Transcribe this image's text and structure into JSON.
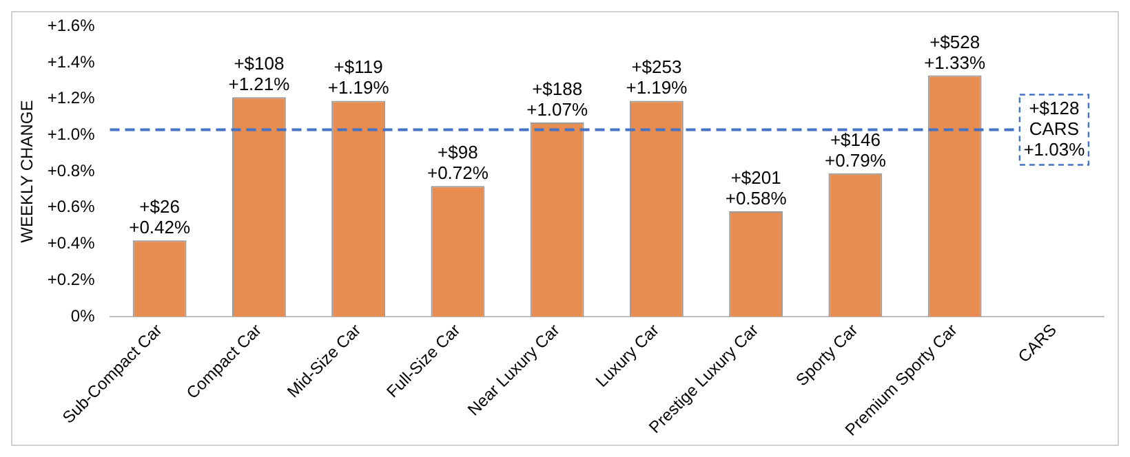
{
  "chart_data": {
    "type": "bar",
    "ylabel": "WEEKLY CHANGE",
    "categories": [
      "Sub-Compact Car",
      "Compact Car",
      "Mid-Size Car",
      "Full-Size Car",
      "Near Luxury Car",
      "Luxury Car",
      "Prestige Luxury Car",
      "Sporty Car",
      "Premium Sporty Car",
      "CARS"
    ],
    "values": [
      0.42,
      1.21,
      1.19,
      0.72,
      1.07,
      1.19,
      0.58,
      0.79,
      1.33,
      null
    ],
    "value_labels": [
      "+$26\n+0.42%",
      "+$108\n+1.21%",
      "+$119\n+1.19%",
      "+$98\n+0.72%",
      "+$188\n+1.07%",
      "+$253\n+1.19%",
      "+$201\n+0.58%",
      "+$146\n+0.79%",
      "+$528\n+1.33%",
      null
    ],
    "color": "#e88d52",
    "ylim": [
      0,
      1.6
    ],
    "yticks": [
      {
        "value": 0,
        "label": "0%"
      },
      {
        "value": 0.2,
        "label": "+0.2%"
      },
      {
        "value": 0.4,
        "label": "+0.4%"
      },
      {
        "value": 0.6,
        "label": "+0.6%"
      },
      {
        "value": 0.8,
        "label": "+0.8%"
      },
      {
        "value": 1.0,
        "label": "+1.0%"
      },
      {
        "value": 1.2,
        "label": "+1.2%"
      },
      {
        "value": 1.4,
        "label": "+1.4%"
      },
      {
        "value": 1.6,
        "label": "+1.6%"
      }
    ],
    "ref_lines": [
      {
        "axis": "y",
        "value": 1.03,
        "label": "+$128\nCARS\n+1.03%",
        "color": "#4472c4",
        "line_style": "dashed"
      }
    ],
    "grid": false,
    "legend": false
  }
}
